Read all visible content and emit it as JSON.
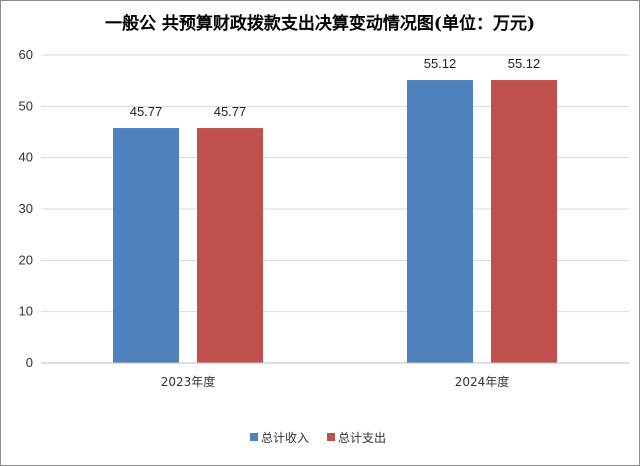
{
  "chart_data": {
    "type": "bar",
    "title": "一般公 共预算财政拨款支出决算变动情况图(单位：万元)",
    "categories": [
      "2023年度",
      "2024年度"
    ],
    "series": [
      {
        "name": "总计收入",
        "color": "#4F81BD",
        "values": [
          45.77,
          55.12
        ]
      },
      {
        "name": "总计支出",
        "color": "#C0504D",
        "values": [
          45.77,
          55.12
        ]
      }
    ],
    "y_ticks": [
      0,
      10,
      20,
      30,
      40,
      50,
      60
    ],
    "ylim": [
      0,
      60
    ],
    "grid": true,
    "legend": "bottom"
  }
}
